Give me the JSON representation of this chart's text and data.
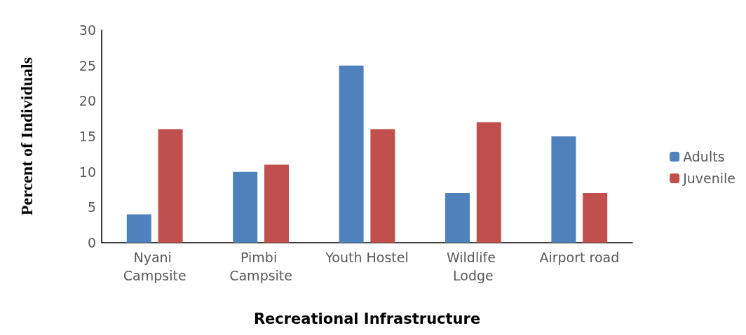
{
  "chart_data": {
    "type": "bar",
    "xlabel": "Recreational Infrastructure",
    "ylabel": "Percent of Individuals",
    "categories": [
      "Nyani Campsite",
      "Pimbi Campsite",
      "Youth Hostel",
      "Wildlife Lodge",
      "Airport road"
    ],
    "series": [
      {
        "name": "Adults",
        "color": "#4f81bd",
        "values": [
          4,
          10,
          25,
          7,
          15
        ]
      },
      {
        "name": "Juvenile",
        "color": "#c0504d",
        "values": [
          16,
          11,
          16,
          17,
          7
        ]
      }
    ],
    "ylim": [
      0,
      30
    ],
    "yticks": [
      0,
      5,
      10,
      15,
      20,
      25,
      30
    ],
    "grid": false,
    "legend": "right"
  }
}
